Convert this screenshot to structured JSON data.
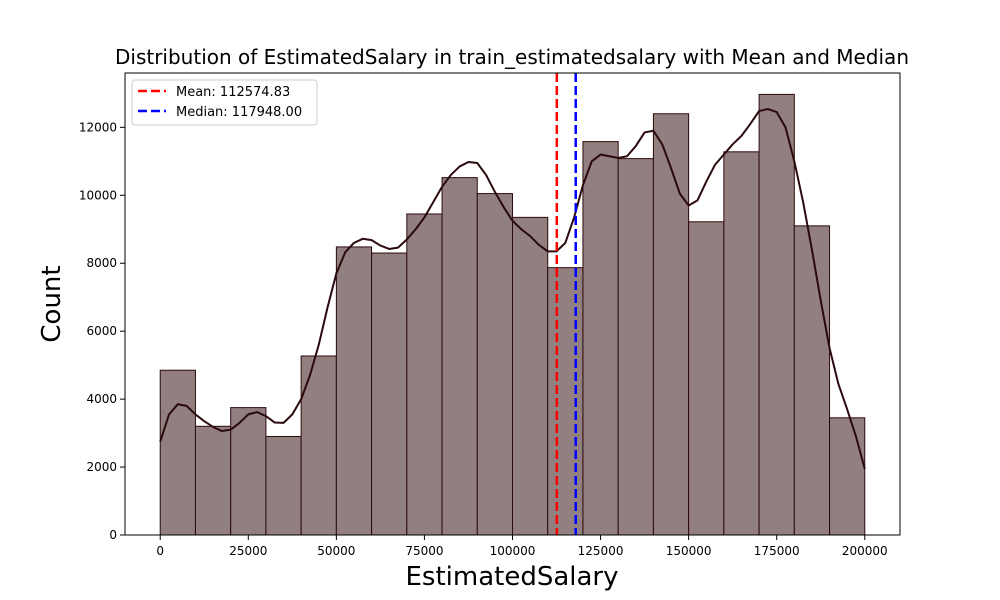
{
  "chart_data": {
    "type": "bar",
    "title": "Distribution of EstimatedSalary in train_estimatedsalary with Mean and Median",
    "xlabel": "EstimatedSalary",
    "ylabel": "Count",
    "xlim": [
      -10000,
      210000
    ],
    "ylim": [
      0,
      13600
    ],
    "x_ticks": [
      0,
      25000,
      50000,
      75000,
      100000,
      125000,
      150000,
      175000,
      200000
    ],
    "y_ticks": [
      0,
      2000,
      4000,
      6000,
      8000,
      10000,
      12000
    ],
    "bin_edges": [
      0,
      10000,
      20000,
      30000,
      40000,
      50000,
      60000,
      70000,
      80000,
      90000,
      100000,
      110000,
      120000,
      130000,
      140000,
      150000,
      160000,
      170000,
      180000,
      190000,
      200000
    ],
    "values": [
      4850,
      3200,
      3750,
      2900,
      5270,
      8480,
      8300,
      9450,
      10520,
      10050,
      9350,
      7870,
      11580,
      11080,
      12400,
      9220,
      11280,
      12970,
      9100,
      3450
    ],
    "bar_color": "#927f7f",
    "edge_color": "#2b0a0d",
    "kde": {
      "color": "#2b0a0d",
      "x": [
        0,
        2500,
        5000,
        7500,
        10000,
        12500,
        15000,
        17500,
        20000,
        22500,
        25000,
        27500,
        30000,
        32500,
        35000,
        37500,
        40000,
        42500,
        45000,
        47500,
        50000,
        52500,
        55000,
        57500,
        60000,
        62500,
        65000,
        67500,
        70000,
        72500,
        75000,
        77500,
        80000,
        82500,
        85000,
        87500,
        90000,
        92500,
        95000,
        97500,
        100000,
        102500,
        105000,
        107500,
        110000,
        112500,
        115000,
        117500,
        120000,
        122500,
        125000,
        127500,
        130000,
        132500,
        135000,
        137500,
        140000,
        142500,
        145000,
        147500,
        150000,
        152500,
        155000,
        157500,
        160000,
        162500,
        165000,
        167500,
        170000,
        172500,
        175000,
        177500,
        180000,
        182500,
        185000,
        187500,
        190000,
        192500,
        195000,
        197500,
        200000
      ],
      "y": [
        2750,
        3550,
        3850,
        3800,
        3550,
        3350,
        3180,
        3060,
        3100,
        3300,
        3550,
        3620,
        3500,
        3310,
        3300,
        3550,
        4000,
        4700,
        5600,
        6700,
        7700,
        8320,
        8600,
        8720,
        8680,
        8520,
        8420,
        8460,
        8700,
        9000,
        9350,
        9800,
        10250,
        10600,
        10850,
        10980,
        10950,
        10600,
        10100,
        9650,
        9250,
        9000,
        8800,
        8540,
        8350,
        8350,
        8600,
        9350,
        10300,
        11000,
        11200,
        11150,
        11100,
        11150,
        11450,
        11850,
        11900,
        11500,
        10800,
        10050,
        9700,
        9850,
        10400,
        10900,
        11200,
        11500,
        11750,
        12100,
        12480,
        12540,
        12450,
        12000,
        11000,
        9800,
        8400,
        6900,
        5500,
        4450,
        3700,
        2900,
        1950
      ]
    },
    "lines": [
      {
        "name": "Mean: 112574.83",
        "x": 112574.83,
        "color": "#ff0000"
      },
      {
        "name": "Median: 117948.00",
        "x": 117948.0,
        "color": "#0000ff"
      }
    ],
    "legend_position": "top-left",
    "grid": false
  }
}
